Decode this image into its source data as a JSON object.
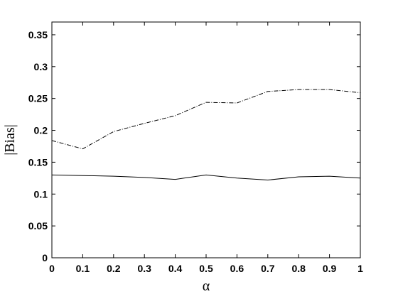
{
  "chart_data": {
    "type": "line",
    "xlabel": "α",
    "ylabel": "|Bias|",
    "xlim": [
      0,
      1
    ],
    "ylim": [
      0,
      0.37
    ],
    "xticks": [
      0,
      0.1,
      0.2,
      0.3,
      0.4,
      0.5,
      0.6,
      0.7,
      0.8,
      0.9,
      1
    ],
    "xtick_labels": [
      "0",
      "0.1",
      "0.2",
      "0.3",
      "0.4",
      "0.5",
      "0.6",
      "0.7",
      "0.8",
      "0.9",
      "1"
    ],
    "yticks": [
      0,
      0.05,
      0.1,
      0.15,
      0.2,
      0.25,
      0.3,
      0.35
    ],
    "ytick_labels": [
      "0",
      "0.05",
      "0.1",
      "0.15",
      "0.2",
      "0.25",
      "0.3",
      "0.35"
    ],
    "grid": false,
    "x": [
      0,
      0.1,
      0.2,
      0.3,
      0.4,
      0.5,
      0.6,
      0.7,
      0.8,
      0.9,
      1
    ],
    "series": [
      {
        "style": "dashdot",
        "color": "#000000",
        "values": [
          0.184,
          0.171,
          0.198,
          0.211,
          0.223,
          0.244,
          0.243,
          0.261,
          0.264,
          0.264,
          0.259
        ]
      },
      {
        "style": "solid",
        "color": "#000000",
        "values": [
          0.13,
          0.129,
          0.128,
          0.126,
          0.123,
          0.13,
          0.125,
          0.122,
          0.127,
          0.128,
          0.125
        ]
      }
    ]
  }
}
